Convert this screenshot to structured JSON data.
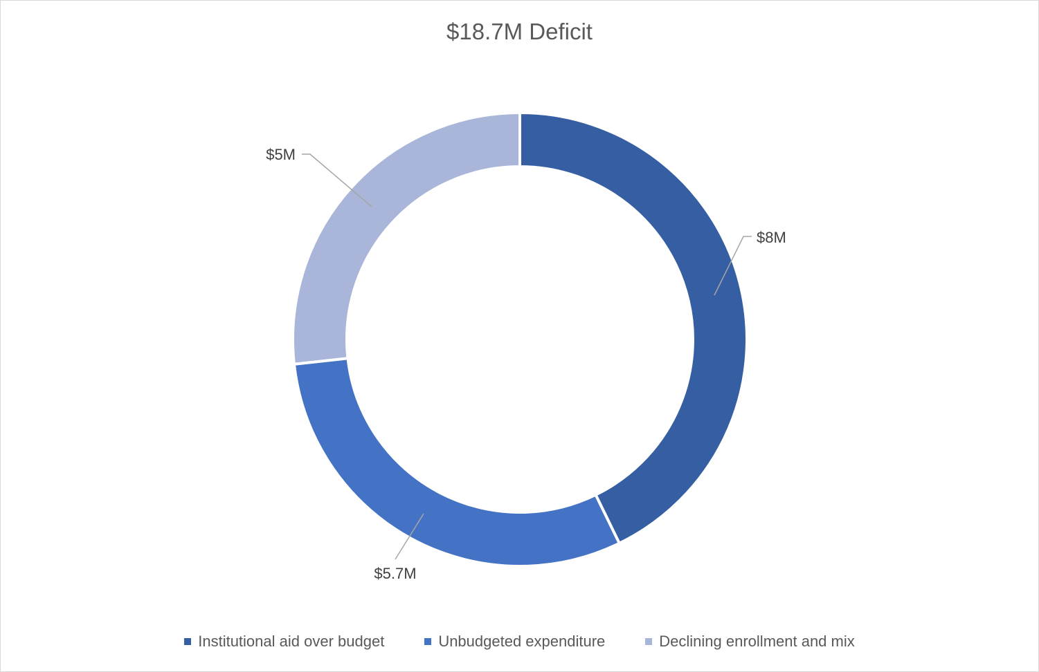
{
  "chart_data": {
    "type": "pie",
    "subtype": "doughnut",
    "title": "$18.7M Deficit",
    "categories": [
      "Institutional aid over budget",
      "Unbudgeted expenditure",
      "Declining enrollment and mix"
    ],
    "values": [
      8,
      5.7,
      5
    ],
    "unit": "$M",
    "data_labels": [
      "$8M",
      "$5.7M",
      "$5M"
    ],
    "colors": [
      "#365FA3",
      "#4472C4",
      "#A9B6DA"
    ],
    "legend_position": "bottom",
    "start_angle": "top (12 o'clock)",
    "direction": "clockwise"
  }
}
